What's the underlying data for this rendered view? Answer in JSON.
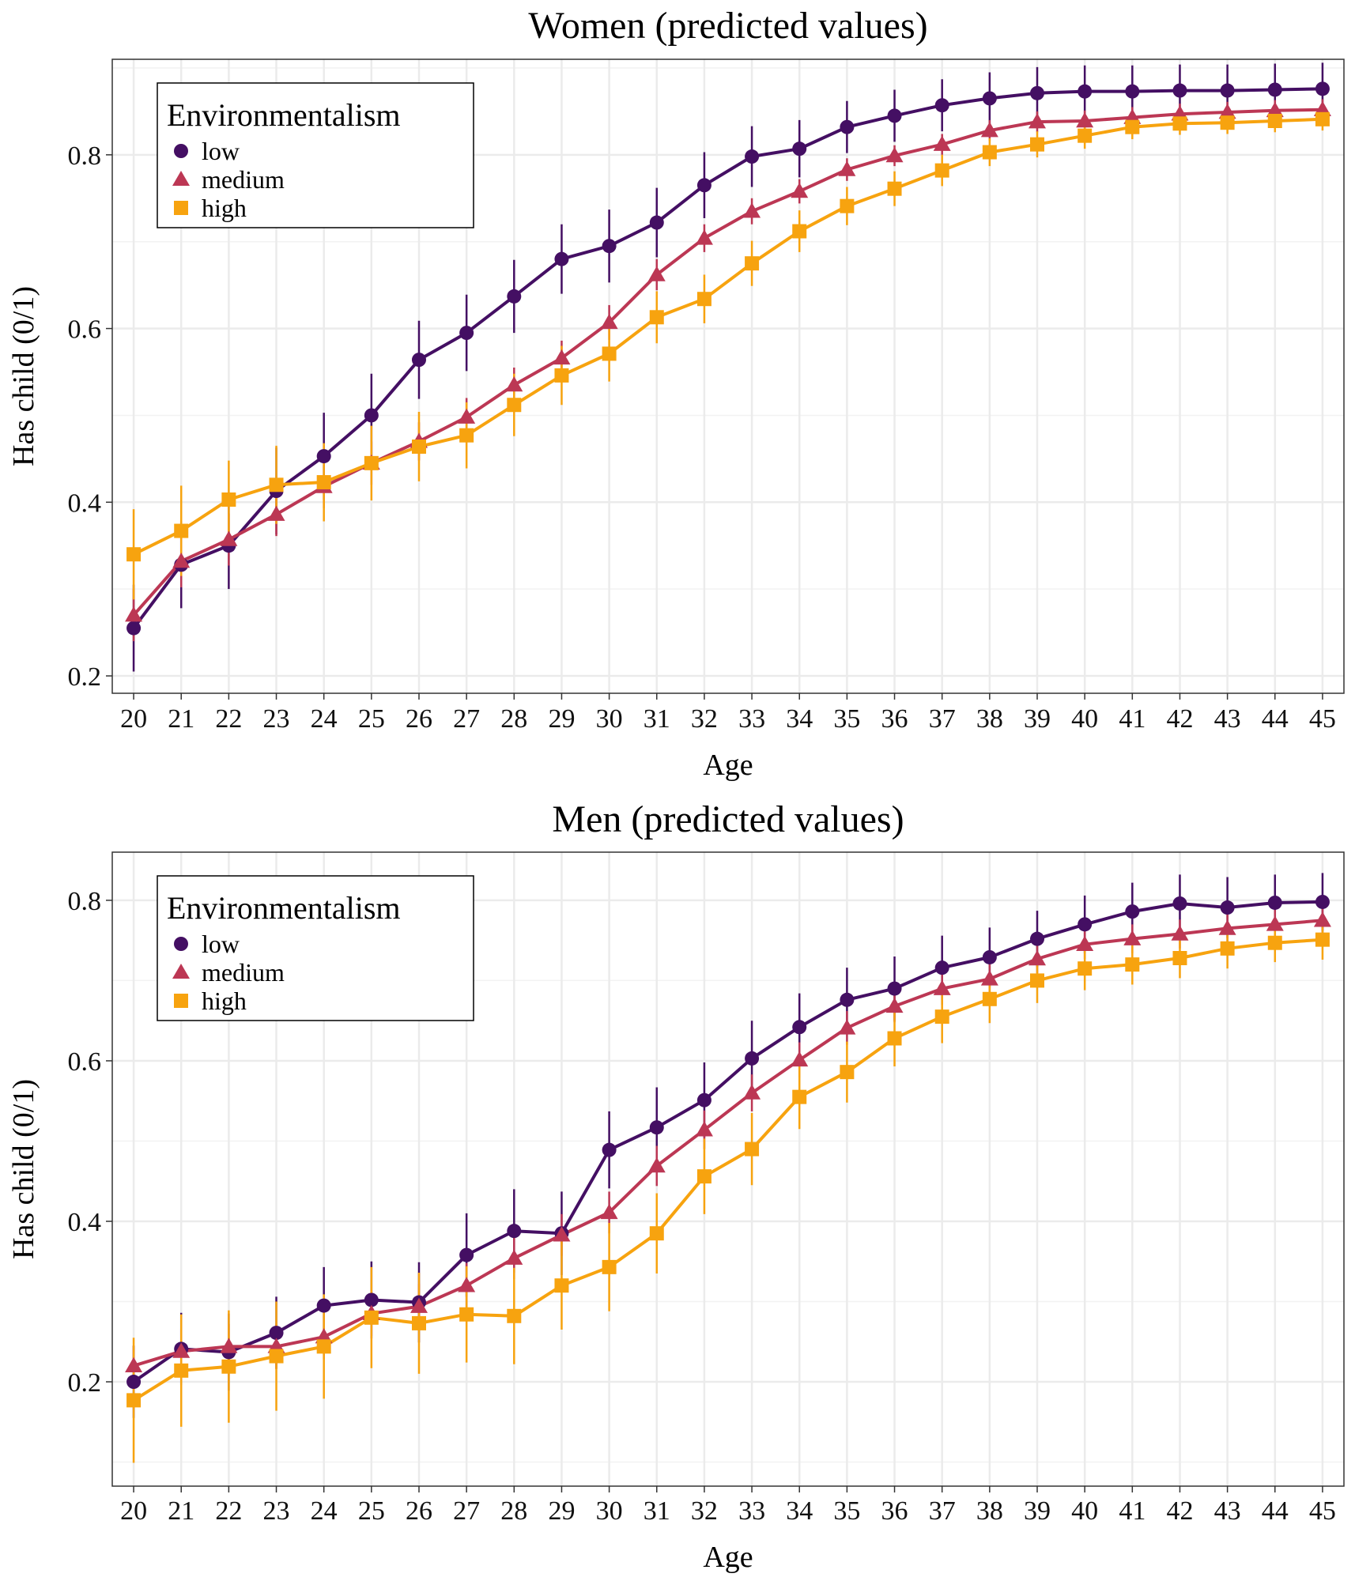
{
  "chart_data": [
    {
      "type": "line",
      "title": "Women (predicted values)",
      "xlabel": "Age",
      "ylabel": "Has child (0/1)",
      "x": [
        20,
        21,
        22,
        23,
        24,
        25,
        26,
        27,
        28,
        29,
        30,
        31,
        32,
        33,
        34,
        35,
        36,
        37,
        38,
        39,
        40,
        41,
        42,
        43,
        44,
        45
      ],
      "ylim": [
        0.18,
        0.91
      ],
      "yticks": [
        0.2,
        0.4,
        0.6,
        0.8
      ],
      "ytick_labels": [
        "0.2",
        "0.4",
        "0.6",
        "0.8"
      ],
      "grid": true,
      "error_bars": true,
      "legend": {
        "title": "Environmentalism",
        "position": "top-left"
      },
      "series": [
        {
          "name": "low",
          "marker": "circle",
          "color": "#440F63",
          "values": [
            0.255,
            0.328,
            0.35,
            0.413,
            0.453,
            0.5,
            0.564,
            0.595,
            0.637,
            0.68,
            0.695,
            0.722,
            0.765,
            0.798,
            0.807,
            0.832,
            0.845,
            0.857,
            0.865,
            0.871,
            0.873,
            0.873,
            0.874,
            0.874,
            0.875,
            0.876
          ],
          "ci_halfwidth": [
            0.05,
            0.05,
            0.05,
            0.05,
            0.05,
            0.048,
            0.045,
            0.044,
            0.042,
            0.04,
            0.042,
            0.04,
            0.038,
            0.035,
            0.033,
            0.03,
            0.03,
            0.03,
            0.03,
            0.03,
            0.03,
            0.03,
            0.03,
            0.03,
            0.03,
            0.03
          ]
        },
        {
          "name": "medium",
          "marker": "triangle",
          "color": "#BC3754",
          "values": [
            0.27,
            0.332,
            0.357,
            0.386,
            0.418,
            0.445,
            0.47,
            0.498,
            0.535,
            0.566,
            0.607,
            0.662,
            0.704,
            0.735,
            0.758,
            0.783,
            0.799,
            0.812,
            0.828,
            0.838,
            0.839,
            0.843,
            0.847,
            0.849,
            0.851,
            0.852
          ],
          "ci_halfwidth": [
            0.03,
            0.03,
            0.03,
            0.025,
            0.025,
            0.025,
            0.022,
            0.022,
            0.02,
            0.02,
            0.02,
            0.018,
            0.016,
            0.015,
            0.014,
            0.013,
            0.012,
            0.012,
            0.012,
            0.012,
            0.012,
            0.012,
            0.012,
            0.012,
            0.012,
            0.012
          ]
        },
        {
          "name": "high",
          "marker": "square",
          "color": "#F7A30F",
          "values": [
            0.34,
            0.367,
            0.403,
            0.42,
            0.423,
            0.445,
            0.464,
            0.477,
            0.512,
            0.546,
            0.571,
            0.613,
            0.634,
            0.675,
            0.712,
            0.741,
            0.761,
            0.782,
            0.803,
            0.812,
            0.822,
            0.832,
            0.836,
            0.837,
            0.839,
            0.841
          ],
          "ci_halfwidth": [
            0.052,
            0.052,
            0.045,
            0.045,
            0.045,
            0.043,
            0.04,
            0.038,
            0.036,
            0.034,
            0.032,
            0.03,
            0.028,
            0.026,
            0.024,
            0.022,
            0.02,
            0.018,
            0.016,
            0.015,
            0.015,
            0.014,
            0.013,
            0.013,
            0.013,
            0.013
          ]
        }
      ]
    },
    {
      "type": "line",
      "title": "Men (predicted values)",
      "xlabel": "Age",
      "ylabel": "Has child (0/1)",
      "x": [
        20,
        21,
        22,
        23,
        24,
        25,
        26,
        27,
        28,
        29,
        30,
        31,
        32,
        33,
        34,
        35,
        36,
        37,
        38,
        39,
        40,
        41,
        42,
        43,
        44,
        45
      ],
      "ylim": [
        0.07,
        0.86
      ],
      "yticks": [
        0.2,
        0.4,
        0.6,
        0.8
      ],
      "ytick_labels": [
        "0.2",
        "0.4",
        "0.6",
        "0.8"
      ],
      "grid": true,
      "error_bars": true,
      "legend": {
        "title": "Environmentalism",
        "position": "top-left"
      },
      "series": [
        {
          "name": "low",
          "marker": "circle",
          "color": "#440F63",
          "values": [
            0.2,
            0.241,
            0.237,
            0.261,
            0.295,
            0.302,
            0.299,
            0.358,
            0.388,
            0.385,
            0.489,
            0.517,
            0.551,
            0.603,
            0.642,
            0.676,
            0.69,
            0.716,
            0.729,
            0.752,
            0.77,
            0.786,
            0.796,
            0.791,
            0.797,
            0.798
          ],
          "ci_halfwidth": [
            0.045,
            0.045,
            0.048,
            0.045,
            0.048,
            0.048,
            0.05,
            0.052,
            0.052,
            0.052,
            0.048,
            0.05,
            0.047,
            0.047,
            0.042,
            0.04,
            0.04,
            0.04,
            0.037,
            0.035,
            0.036,
            0.036,
            0.036,
            0.038,
            0.035,
            0.036
          ]
        },
        {
          "name": "medium",
          "marker": "triangle",
          "color": "#BC3754",
          "values": [
            0.22,
            0.238,
            0.244,
            0.244,
            0.256,
            0.285,
            0.294,
            0.32,
            0.354,
            0.383,
            0.411,
            0.469,
            0.514,
            0.56,
            0.601,
            0.641,
            0.668,
            0.69,
            0.702,
            0.727,
            0.745,
            0.752,
            0.758,
            0.765,
            0.77,
            0.775
          ],
          "ci_halfwidth": [
            0.025,
            0.028,
            0.028,
            0.028,
            0.028,
            0.028,
            0.028,
            0.028,
            0.026,
            0.026,
            0.026,
            0.025,
            0.024,
            0.023,
            0.022,
            0.021,
            0.02,
            0.02,
            0.019,
            0.018,
            0.018,
            0.018,
            0.018,
            0.018,
            0.018,
            0.018
          ]
        },
        {
          "name": "high",
          "marker": "square",
          "color": "#F7A30F",
          "values": [
            0.177,
            0.214,
            0.219,
            0.232,
            0.244,
            0.28,
            0.273,
            0.284,
            0.282,
            0.32,
            0.343,
            0.385,
            0.456,
            0.49,
            0.555,
            0.586,
            0.628,
            0.655,
            0.677,
            0.7,
            0.715,
            0.72,
            0.728,
            0.74,
            0.747,
            0.751
          ],
          "ci_halfwidth": [
            0.078,
            0.07,
            0.07,
            0.068,
            0.065,
            0.063,
            0.063,
            0.06,
            0.06,
            0.055,
            0.055,
            0.05,
            0.047,
            0.045,
            0.04,
            0.038,
            0.035,
            0.033,
            0.03,
            0.028,
            0.027,
            0.025,
            0.025,
            0.025,
            0.024,
            0.025
          ]
        }
      ]
    }
  ]
}
